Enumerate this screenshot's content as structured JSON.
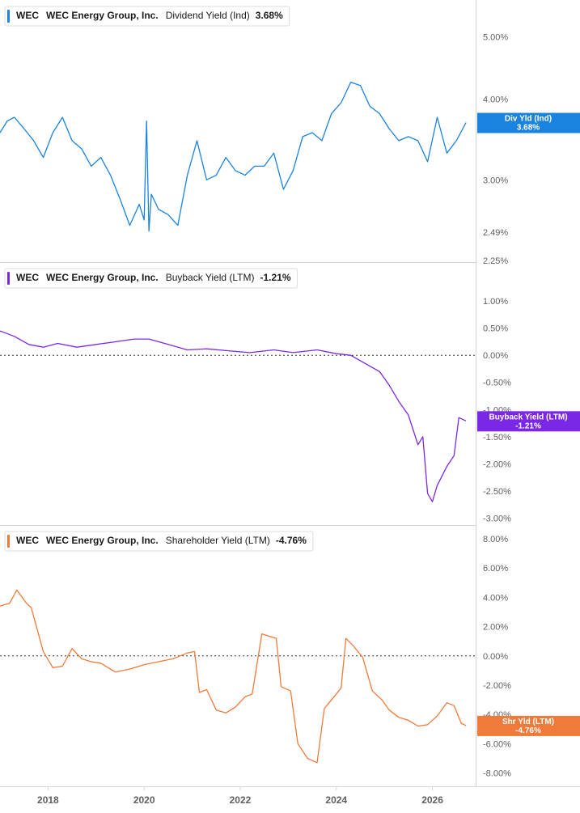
{
  "ticker": "WEC",
  "company": "WEC Energy Group, Inc.",
  "x_axis_labels": [
    "2018",
    "2020",
    "2022",
    "2024",
    "2026"
  ],
  "colors": {
    "dividend": "#1a83e0",
    "buyback": "#7a28e6",
    "shareholder": "#f07a3a",
    "grid": "#d4d4d4",
    "tick_text": "#5f5f5f",
    "zero_line": "#333333"
  },
  "chart_data": [
    {
      "type": "line",
      "title": "Dividend Yield (Ind)",
      "current_value": "3.68%",
      "badge": {
        "name": "Div Yld (Ind)",
        "value": "3.68%"
      },
      "y_ticks": [
        5.0,
        4.0,
        3.0,
        2.49,
        2.25
      ],
      "y_tick_labels": [
        "5.00%",
        "4.00%",
        "3.00%",
        "2.49%",
        "2.25%"
      ],
      "scale": "log",
      "ylim": [
        2.25,
        5.6
      ],
      "xlim": [
        2017.0,
        2026.9
      ],
      "zero_line": false,
      "series": [
        {
          "x": [
            2017.0,
            2017.15,
            2017.3,
            2017.5,
            2017.7,
            2017.9,
            2018.1,
            2018.3,
            2018.5,
            2018.7,
            2018.9,
            2019.1,
            2019.3,
            2019.5,
            2019.7,
            2019.9,
            2020.0,
            2020.05,
            2020.1,
            2020.15,
            2020.3,
            2020.5,
            2020.7,
            2020.9,
            2021.1,
            2021.3,
            2021.5,
            2021.7,
            2021.9,
            2022.1,
            2022.3,
            2022.5,
            2022.7,
            2022.9,
            2023.1,
            2023.3,
            2023.5,
            2023.7,
            2023.9,
            2024.1,
            2024.3,
            2024.5,
            2024.7,
            2024.9,
            2025.1,
            2025.3,
            2025.5,
            2025.7,
            2025.9,
            2026.1,
            2026.3,
            2026.5,
            2026.7
          ],
          "values": [
            3.55,
            3.7,
            3.75,
            3.6,
            3.45,
            3.25,
            3.55,
            3.75,
            3.45,
            3.35,
            3.15,
            3.25,
            3.05,
            2.8,
            2.55,
            2.75,
            2.6,
            3.7,
            2.5,
            2.85,
            2.7,
            2.65,
            2.55,
            3.05,
            3.45,
            3.0,
            3.05,
            3.25,
            3.1,
            3.05,
            3.15,
            3.15,
            3.3,
            2.9,
            3.1,
            3.5,
            3.55,
            3.45,
            3.8,
            3.95,
            4.25,
            4.2,
            3.9,
            3.8,
            3.6,
            3.45,
            3.5,
            3.45,
            3.2,
            3.75,
            3.3,
            3.45,
            3.68
          ]
        }
      ]
    },
    {
      "type": "line",
      "title": "Buyback Yield (LTM)",
      "current_value": "-1.21%",
      "badge": {
        "name": "Buyback Yield (LTM)",
        "value": "-1.21%"
      },
      "y_ticks": [
        1.0,
        0.5,
        0.0,
        -0.5,
        -1.0,
        -1.5,
        -2.0,
        -2.5,
        -3.0
      ],
      "y_tick_labels": [
        "1.00%",
        "0.50%",
        "0.00%",
        "-0.50%",
        "-1.00%",
        "-1.50%",
        "-2.00%",
        "-2.50%",
        "-3.00%"
      ],
      "scale": "linear",
      "ylim": [
        -3.1,
        1.6
      ],
      "xlim": [
        2017.0,
        2026.9
      ],
      "zero_line": true,
      "series": [
        {
          "x": [
            2017.0,
            2017.3,
            2017.6,
            2017.9,
            2018.2,
            2018.6,
            2019.0,
            2019.4,
            2019.8,
            2020.1,
            2020.5,
            2020.9,
            2021.3,
            2021.8,
            2022.2,
            2022.7,
            2023.1,
            2023.6,
            2024.0,
            2024.3,
            2024.6,
            2024.9,
            2025.1,
            2025.3,
            2025.5,
            2025.7,
            2025.8,
            2025.9,
            2026.0,
            2026.1,
            2026.3,
            2026.45,
            2026.55,
            2026.7
          ],
          "values": [
            0.45,
            0.35,
            0.2,
            0.15,
            0.22,
            0.15,
            0.2,
            0.25,
            0.3,
            0.3,
            0.2,
            0.1,
            0.12,
            0.08,
            0.05,
            0.1,
            0.05,
            0.1,
            0.03,
            0.0,
            -0.15,
            -0.3,
            -0.55,
            -0.85,
            -1.1,
            -1.65,
            -1.5,
            -2.55,
            -2.7,
            -2.4,
            -2.05,
            -1.85,
            -1.15,
            -1.21
          ]
        }
      ]
    },
    {
      "type": "line",
      "title": "Shareholder Yield (LTM)",
      "current_value": "-4.76%",
      "badge": {
        "name": "Shr Yld (LTM)",
        "value": "-4.76%"
      },
      "y_ticks": [
        8.0,
        6.0,
        4.0,
        2.0,
        0.0,
        -2.0,
        -4.0,
        -6.0,
        -8.0
      ],
      "y_tick_labels": [
        "8.00%",
        "6.00%",
        "4.00%",
        "2.00%",
        "0.00%",
        "-2.00%",
        "-4.00%",
        "-6.00%",
        "-8.00%"
      ],
      "scale": "linear",
      "ylim": [
        -8.8,
        8.5
      ],
      "xlim": [
        2017.0,
        2026.9
      ],
      "zero_line": true,
      "series": [
        {
          "x": [
            2017.0,
            2017.2,
            2017.35,
            2017.55,
            2017.65,
            2017.9,
            2018.1,
            2018.3,
            2018.5,
            2018.7,
            2018.9,
            2019.1,
            2019.4,
            2019.7,
            2020.0,
            2020.3,
            2020.6,
            2020.9,
            2021.05,
            2021.15,
            2021.3,
            2021.5,
            2021.7,
            2021.9,
            2022.1,
            2022.25,
            2022.45,
            2022.75,
            2022.85,
            2023.05,
            2023.2,
            2023.4,
            2023.6,
            2023.75,
            2023.85,
            2024.1,
            2024.2,
            2024.35,
            2024.55,
            2024.75,
            2024.95,
            2025.1,
            2025.3,
            2025.5,
            2025.7,
            2025.9,
            2026.1,
            2026.3,
            2026.45,
            2026.6,
            2026.7
          ],
          "values": [
            3.4,
            3.6,
            4.5,
            3.6,
            3.3,
            0.3,
            -0.8,
            -0.7,
            0.5,
            -0.2,
            -0.4,
            -0.5,
            -1.1,
            -0.9,
            -0.6,
            -0.4,
            -0.2,
            0.2,
            0.3,
            -2.5,
            -2.3,
            -3.7,
            -3.9,
            -3.5,
            -2.8,
            -2.6,
            1.5,
            1.2,
            -2.1,
            -2.4,
            -6.0,
            -7.0,
            -7.3,
            -3.6,
            -3.2,
            -2.2,
            1.2,
            0.7,
            -0.1,
            -2.4,
            -3.0,
            -3.7,
            -4.2,
            -4.4,
            -4.8,
            -4.7,
            -4.1,
            -3.2,
            -3.4,
            -4.6,
            -4.76
          ]
        }
      ]
    }
  ]
}
